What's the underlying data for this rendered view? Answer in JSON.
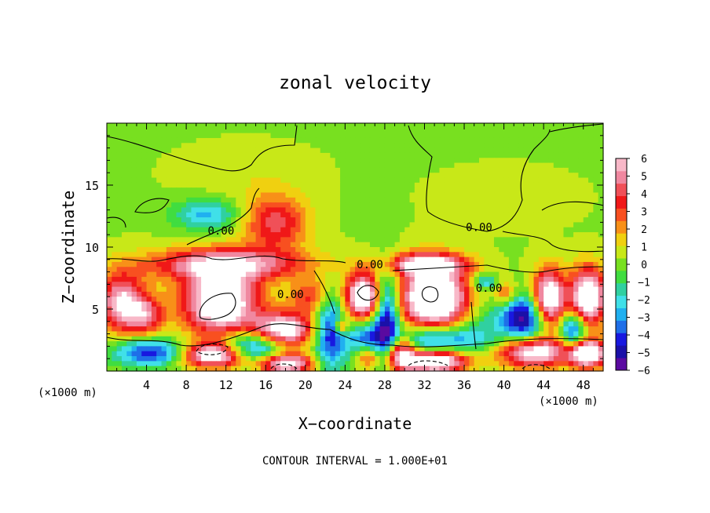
{
  "chart_data": {
    "type": "heatmap",
    "title": "zonal velocity",
    "xlabel": "X−coordinate",
    "ylabel": "Z−coordinate",
    "x_unit_left": "(×1000 m)",
    "x_unit_right": "(×1000 m)",
    "footer": "CONTOUR INTERVAL = 1.000E+01",
    "xlim": [
      0,
      50
    ],
    "ylim": [
      0,
      20
    ],
    "x_ticks": [
      4,
      8,
      12,
      16,
      20,
      24,
      28,
      32,
      36,
      40,
      44,
      48
    ],
    "y_ticks": [
      5,
      10,
      15
    ],
    "colorbar": {
      "range": [
        -6,
        6
      ],
      "ticks": [
        "6",
        "5",
        "4",
        "3",
        "2",
        "1",
        "0",
        "−1",
        "−2",
        "−3",
        "−4",
        "−5",
        "−6"
      ],
      "colors": [
        "#5a0aa0",
        "#1a10a8",
        "#1818e0",
        "#1f6fe8",
        "#20b0f0",
        "#40e0e8",
        "#30d0a0",
        "#40dd40",
        "#78e020",
        "#c8e818",
        "#f0d010",
        "#f89018",
        "#f85020",
        "#f01818",
        "#f05058",
        "#f088a0",
        "#f8b8c8"
      ]
    },
    "contour_labels": [
      {
        "text": "0.00",
        "x": 11.5,
        "y": 11.0
      },
      {
        "text": "0.00",
        "x": 26.5,
        "y": 8.3
      },
      {
        "text": "0.00",
        "x": 18.5,
        "y": 5.9
      },
      {
        "text": "0.00",
        "x": 37.5,
        "y": 11.3
      },
      {
        "text": "0.00",
        "x": 38.5,
        "y": 6.4
      }
    ],
    "blobs": [
      {
        "x": 10,
        "y": 12.6,
        "v": -3,
        "rx": 3.2,
        "ry": 1.2
      },
      {
        "x": 17,
        "y": 12.0,
        "v": 4,
        "rx": 3.2,
        "ry": 2.2
      },
      {
        "x": 12,
        "y": 8.6,
        "v": 5.5,
        "rx": 8,
        "ry": 1.3
      },
      {
        "x": 32,
        "y": 8.6,
        "v": 5.5,
        "rx": 4,
        "ry": 0.9
      },
      {
        "x": 1.5,
        "y": 5.5,
        "v": 6,
        "rx": 2.2,
        "ry": 2.3
      },
      {
        "x": 4,
        "y": 4.5,
        "v": 4,
        "rx": 1.8,
        "ry": 1.6
      },
      {
        "x": 11.5,
        "y": 5.5,
        "v": 8,
        "rx": 3.8,
        "ry": 2.6
      },
      {
        "x": 17.8,
        "y": 3.3,
        "v": 7,
        "rx": 3.0,
        "ry": 1.4
      },
      {
        "x": 20.5,
        "y": 6.0,
        "v": 3,
        "rx": 2.0,
        "ry": 1.4
      },
      {
        "x": 14.5,
        "y": 1.8,
        "v": -6,
        "rx": 3.2,
        "ry": 1.3
      },
      {
        "x": 4.5,
        "y": 1.5,
        "v": -5,
        "rx": 3.8,
        "ry": 1.1
      },
      {
        "x": 11,
        "y": 1.3,
        "v": 8,
        "rx": 3.5,
        "ry": 1.0
      },
      {
        "x": 18,
        "y": 0.6,
        "v": 7,
        "rx": 2.8,
        "ry": 0.8
      },
      {
        "x": 22.5,
        "y": 3.0,
        "v": -5,
        "rx": 1.5,
        "ry": 3.0
      },
      {
        "x": 23.6,
        "y": 3.6,
        "v": 4,
        "rx": 0.7,
        "ry": 0.6
      },
      {
        "x": 25.8,
        "y": 6.0,
        "v": 8,
        "rx": 1.8,
        "ry": 1.8
      },
      {
        "x": 26,
        "y": 2.0,
        "v": -5,
        "rx": 1.8,
        "ry": 1.8
      },
      {
        "x": 26.2,
        "y": 1.2,
        "v": 6,
        "rx": 1.4,
        "ry": 1.1
      },
      {
        "x": 28.2,
        "y": 4.2,
        "v": -6,
        "rx": 1.3,
        "ry": 3.6
      },
      {
        "x": 29.5,
        "y": 1.5,
        "v": 6,
        "rx": 1.5,
        "ry": 1.4
      },
      {
        "x": 33,
        "y": 5.8,
        "v": 9,
        "rx": 3.5,
        "ry": 2.7
      },
      {
        "x": 33,
        "y": 2.6,
        "v": -5,
        "rx": 4.2,
        "ry": 1.3
      },
      {
        "x": 33,
        "y": 0.8,
        "v": 8,
        "rx": 3.5,
        "ry": 0.9
      },
      {
        "x": 38,
        "y": 7.2,
        "v": -3,
        "rx": 1.2,
        "ry": 0.6
      },
      {
        "x": 37.5,
        "y": 3.5,
        "v": -1.5,
        "rx": 2.5,
        "ry": 3.0
      },
      {
        "x": 40.2,
        "y": 6.2,
        "v": 3,
        "rx": 1.2,
        "ry": 1.0
      },
      {
        "x": 42,
        "y": 4.3,
        "v": -6,
        "rx": 2.4,
        "ry": 1.9
      },
      {
        "x": 44.5,
        "y": 5.8,
        "v": 8,
        "rx": 1.6,
        "ry": 2.3
      },
      {
        "x": 43,
        "y": 1.5,
        "v": 7,
        "rx": 3.5,
        "ry": 1.2
      },
      {
        "x": 48.5,
        "y": 6.0,
        "v": 8,
        "rx": 1.8,
        "ry": 2.3
      },
      {
        "x": 48.5,
        "y": 1.4,
        "v": 8,
        "rx": 1.8,
        "ry": 1.1
      },
      {
        "x": 47,
        "y": 3.3,
        "v": -5,
        "rx": 1.3,
        "ry": 1.4
      },
      {
        "x": 14,
        "y": 16,
        "v": 0.6,
        "rx": 6,
        "ry": 2
      },
      {
        "x": 40,
        "y": 14,
        "v": 0.6,
        "rx": 6,
        "ry": 2
      }
    ]
  }
}
